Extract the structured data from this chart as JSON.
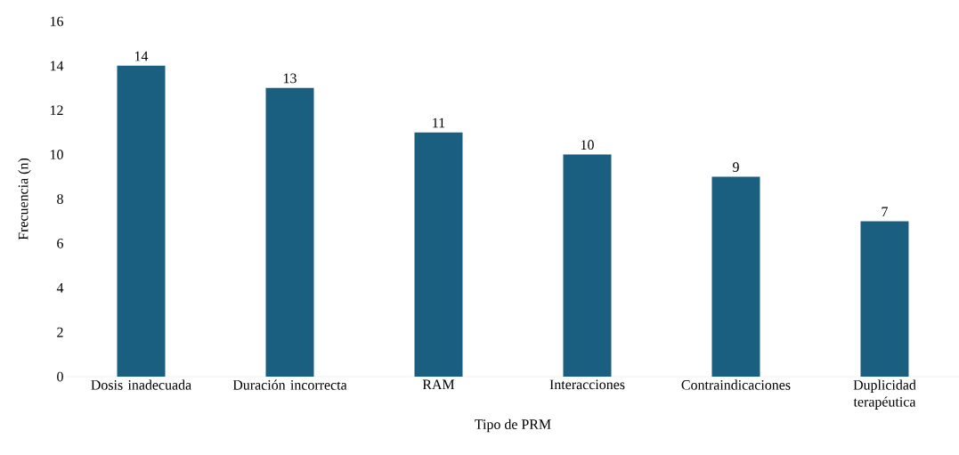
{
  "chart_data": {
    "type": "bar",
    "xlabel": "Tipo de PRM",
    "ylabel": "Frecuencia (n)",
    "categories": [
      "Dosis inadecuada",
      "Duración incorrecta",
      "RAM",
      "Interacciones",
      "Contraindicaciones",
      "Duplicidad terapéutica"
    ],
    "values": [
      14,
      13,
      11,
      10,
      9,
      7
    ],
    "color": "#1a5e80",
    "data_labels": true,
    "ylim": [
      0,
      16
    ],
    "yticks": [
      0,
      2,
      4,
      6,
      8,
      10,
      12,
      14,
      16
    ],
    "grid": false
  }
}
